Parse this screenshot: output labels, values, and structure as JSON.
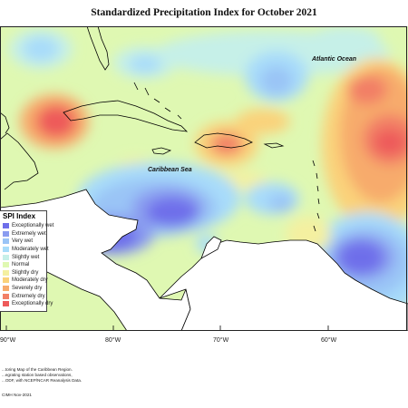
{
  "title": "Standardized Precipitation Index for October 2021",
  "labels": {
    "atlantic": "Atlantic Ocean",
    "caribbean": "Caribbean Sea"
  },
  "legend": {
    "title": "SPI Index",
    "items": [
      {
        "label": "Exceptionally wet",
        "color": "#6e6eea"
      },
      {
        "label": "Extremely wet",
        "color": "#8a9cf0"
      },
      {
        "label": "Very wet",
        "color": "#9ac4f6"
      },
      {
        "label": "Moderately wet",
        "color": "#a8dcfa"
      },
      {
        "label": "Slightly wet",
        "color": "#c6f0e8"
      },
      {
        "label": "Normal",
        "color": "#dff8b2"
      },
      {
        "label": "Slightly dry",
        "color": "#f4f0a0"
      },
      {
        "label": "Moderately dry",
        "color": "#fad27a"
      },
      {
        "label": "Severely dry",
        "color": "#f7ab6c"
      },
      {
        "label": "Extremely dry",
        "color": "#f27f66"
      },
      {
        "label": "Exceptionally dry",
        "color": "#ee5a5a"
      }
    ]
  },
  "axis": {
    "lon_labels": [
      "90°W",
      "80°W",
      "70°W",
      "60°W"
    ]
  },
  "footnote": {
    "line1": "...toring Map of the Caribbean Region.",
    "line2": "...egrating station based observations,",
    "line3": "...ODF, with NCEP/NCAR Reanalysis Data.",
    "credit": "CIMH Nov-2021"
  }
}
